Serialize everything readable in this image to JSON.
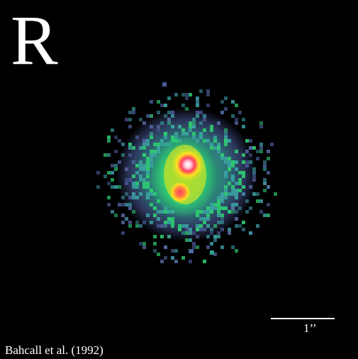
{
  "image": {
    "band_label": "R",
    "scale_label": "1’’",
    "credit": "Bahcall et al. (1992)",
    "colormap": [
      "#000000",
      "#4a5a9a",
      "#3aa0a0",
      "#2ecc71",
      "#c8e02a",
      "#ffe020",
      "#ff4060",
      "#ffd0e0",
      "#ffffff"
    ]
  }
}
